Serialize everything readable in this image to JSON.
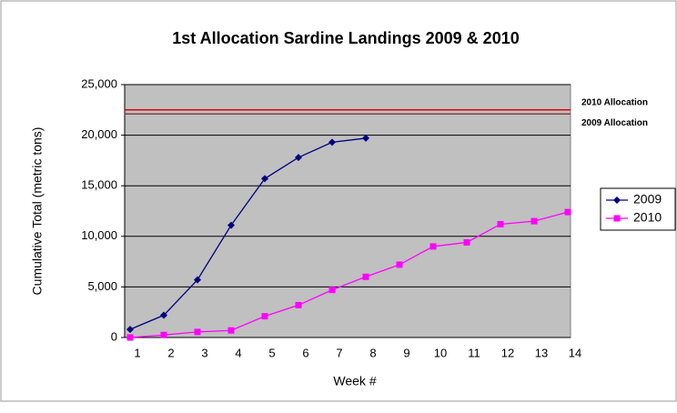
{
  "chart_data": {
    "type": "line",
    "title": "1st Allocation Sardine Landings 2009 & 2010",
    "x_label": "Week #",
    "y_label": "Cumulative Total (metric tons)",
    "categories": [
      "1",
      "2",
      "3",
      "4",
      "5",
      "6",
      "7",
      "8",
      "9",
      "10",
      "11",
      "12",
      "13",
      "14"
    ],
    "series": [
      {
        "name": "2009",
        "color": "#000080",
        "marker": "diamond",
        "values": [
          800,
          2200,
          5700,
          11100,
          15700,
          17800,
          19300,
          19700,
          null,
          null,
          null,
          null,
          null,
          null
        ]
      },
      {
        "name": "2010",
        "color": "#ff00ff",
        "marker": "square",
        "values": [
          0,
          250,
          550,
          700,
          2100,
          3200,
          4700,
          6000,
          7200,
          9000,
          9400,
          11200,
          11500,
          12400
        ]
      }
    ],
    "reference_lines": [
      {
        "label": "2010 Allocation",
        "value": 22500,
        "color": "#dd0000"
      },
      {
        "label": "2009 Allocation",
        "value": 22100,
        "color": "#804040"
      }
    ],
    "ylim": [
      0,
      25000
    ],
    "yticks": [
      0,
      {
        "value": 5000,
        "label": "5,000"
      },
      {
        "value": 10000,
        "label": "10,000"
      },
      {
        "value": 15000,
        "label": "15,000"
      },
      {
        "value": 20000,
        "label": "20,000"
      },
      {
        "value": 25000,
        "label": "25,000"
      }
    ],
    "grid": true,
    "plot_background": "#c0c0c0",
    "legend": "right"
  }
}
